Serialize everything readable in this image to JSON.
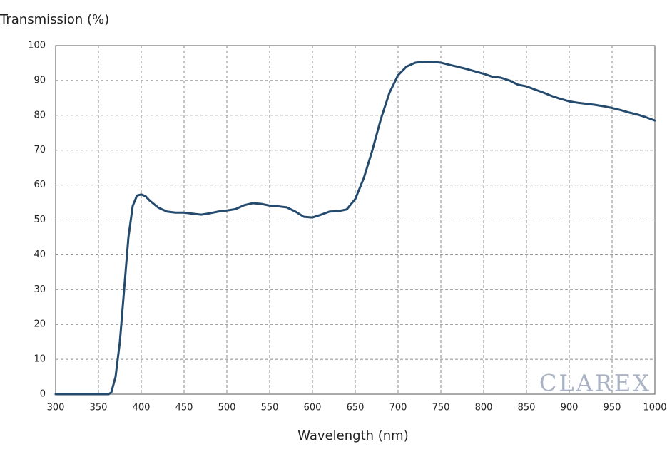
{
  "chart_data": {
    "type": "line",
    "y_label": "Transmission (%)",
    "x_label": "Wavelength (nm)",
    "watermark": "CLAREX",
    "xlim": [
      300,
      1000
    ],
    "ylim": [
      0,
      100
    ],
    "xticks": [
      300,
      350,
      400,
      450,
      500,
      550,
      600,
      650,
      700,
      750,
      800,
      850,
      900,
      950,
      1000
    ],
    "yticks": [
      0,
      10,
      20,
      30,
      40,
      50,
      60,
      70,
      80,
      90,
      100
    ],
    "grid": true,
    "x": [
      300,
      350,
      362,
      365,
      370,
      375,
      380,
      385,
      390,
      395,
      400,
      405,
      410,
      420,
      430,
      440,
      450,
      460,
      470,
      480,
      490,
      500,
      510,
      520,
      530,
      540,
      550,
      560,
      570,
      580,
      590,
      600,
      610,
      620,
      630,
      640,
      650,
      660,
      670,
      680,
      690,
      700,
      710,
      720,
      730,
      740,
      750,
      760,
      770,
      780,
      790,
      800,
      810,
      820,
      830,
      840,
      850,
      860,
      870,
      880,
      890,
      900,
      910,
      920,
      930,
      940,
      950,
      960,
      970,
      980,
      990,
      1000
    ],
    "series": [
      {
        "color": "#244a6e",
        "values": [
          0,
          0,
          0,
          0.5,
          5,
          15,
          30,
          45,
          54,
          57,
          57.3,
          56.8,
          55.5,
          53.5,
          52.4,
          52.1,
          52.1,
          51.8,
          51.5,
          51.9,
          52.4,
          52.7,
          53.1,
          54.2,
          54.8,
          54.6,
          54.1,
          53.9,
          53.6,
          52.4,
          50.9,
          50.7,
          51.5,
          52.4,
          52.5,
          53,
          56,
          62,
          70,
          79,
          86.5,
          91.5,
          94,
          95.1,
          95.4,
          95.4,
          95.1,
          94.5,
          93.9,
          93.3,
          92.6,
          91.9,
          91.1,
          90.8,
          90,
          88.8,
          88.3,
          87.4,
          86.5,
          85.5,
          84.7,
          84,
          83.6,
          83.3,
          83,
          82.6,
          82.1,
          81.5,
          80.8,
          80.2,
          79.4,
          78.5
        ]
      }
    ]
  }
}
